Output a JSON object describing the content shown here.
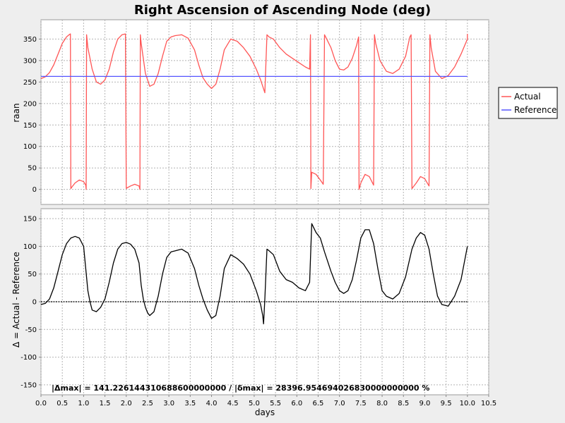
{
  "chart_data": [
    {
      "type": "line",
      "title": "Right Ascension of Ascending Node (deg)",
      "xlabel": "",
      "ylabel": "raan",
      "xlim": [
        0,
        10.5
      ],
      "ylim": [
        -35,
        395
      ],
      "yticks": [
        0,
        50,
        100,
        150,
        200,
        250,
        300,
        350
      ],
      "legend": {
        "placement": "right",
        "entries": [
          "Actual",
          "Reference"
        ]
      },
      "grid": true,
      "series": [
        {
          "name": "Actual",
          "color": "#ff5555",
          "x": [
            0,
            0.1,
            0.2,
            0.3,
            0.4,
            0.5,
            0.6,
            0.66,
            0.69,
            0.7,
            0.72,
            0.8,
            0.9,
            1.0,
            1.05,
            1.06,
            1.07,
            1.1,
            1.2,
            1.3,
            1.4,
            1.5,
            1.6,
            1.7,
            1.8,
            1.9,
            1.98,
            2.0,
            2.01,
            2.1,
            2.2,
            2.3,
            2.32,
            2.33,
            2.35,
            2.45,
            2.55,
            2.65,
            2.75,
            2.85,
            2.95,
            3.05,
            3.15,
            3.3,
            3.45,
            3.6,
            3.7,
            3.8,
            3.9,
            4.0,
            4.1,
            4.2,
            4.3,
            4.45,
            4.6,
            4.75,
            4.9,
            5.05,
            5.15,
            5.2,
            5.25,
            5.3,
            5.35,
            5.45,
            5.6,
            5.75,
            5.9,
            6.05,
            6.2,
            6.3,
            6.32,
            6.33,
            6.35,
            6.45,
            6.55,
            6.62,
            6.65,
            6.7,
            6.8,
            6.9,
            7.0,
            7.1,
            7.2,
            7.3,
            7.4,
            7.45,
            7.46,
            7.5,
            7.6,
            7.7,
            7.8,
            7.82,
            7.85,
            7.95,
            8.1,
            8.25,
            8.4,
            8.55,
            8.65,
            8.68,
            8.7,
            8.8,
            8.9,
            9.0,
            9.1,
            9.12,
            9.15,
            9.25,
            9.4,
            9.55,
            9.7,
            9.85,
            10.0,
            10.0
          ],
          "y": [
            258,
            262,
            272,
            290,
            315,
            340,
            355,
            360,
            362,
            2,
            5,
            15,
            22,
            18,
            10,
            0,
            360,
            330,
            280,
            250,
            245,
            255,
            280,
            320,
            350,
            360,
            362,
            2,
            3,
            8,
            12,
            8,
            0,
            360,
            340,
            270,
            240,
            245,
            270,
            310,
            345,
            355,
            358,
            360,
            352,
            325,
            290,
            260,
            245,
            235,
            245,
            280,
            325,
            350,
            345,
            330,
            310,
            280,
            255,
            240,
            225,
            360,
            355,
            350,
            330,
            315,
            305,
            295,
            285,
            280,
            360,
            2,
            40,
            35,
            22,
            12,
            360,
            350,
            330,
            300,
            280,
            278,
            285,
            305,
            335,
            355,
            0,
            15,
            35,
            30,
            10,
            360,
            340,
            300,
            275,
            270,
            280,
            310,
            355,
            360,
            2,
            15,
            30,
            25,
            8,
            360,
            330,
            275,
            258,
            265,
            285,
            315,
            350,
            362
          ]
        },
        {
          "name": "Reference",
          "color": "#5555ff",
          "x": [
            0,
            10
          ],
          "y": [
            263,
            263
          ]
        }
      ]
    },
    {
      "type": "line",
      "title": "",
      "xlabel": "days",
      "ylabel": "Δ = Actual - Reference",
      "xlim": [
        0,
        10.5
      ],
      "ylim": [
        -168,
        168
      ],
      "xticks": [
        0.0,
        0.5,
        1.0,
        1.5,
        2.0,
        2.5,
        3.0,
        3.5,
        4.0,
        4.5,
        5.0,
        5.5,
        6.0,
        6.5,
        7.0,
        7.5,
        8.0,
        8.5,
        9.0,
        9.5,
        10.0,
        10.5
      ],
      "yticks": [
        -150,
        -100,
        -50,
        0,
        50,
        100,
        150
      ],
      "grid": true,
      "annotation": "|Δmax| = 141.226144310688600000000       /       |δmax| = 28396.954694026830000000000 %",
      "series": [
        {
          "name": "",
          "color": "#000000",
          "x": [
            0,
            0.1,
            0.2,
            0.3,
            0.4,
            0.5,
            0.6,
            0.7,
            0.8,
            0.9,
            1.0,
            1.05,
            1.1,
            1.15,
            1.2,
            1.3,
            1.4,
            1.5,
            1.6,
            1.7,
            1.8,
            1.9,
            2.0,
            2.1,
            2.2,
            2.3,
            2.35,
            2.4,
            2.45,
            2.5,
            2.55,
            2.65,
            2.75,
            2.85,
            2.95,
            3.05,
            3.15,
            3.3,
            3.45,
            3.6,
            3.7,
            3.8,
            3.9,
            4.0,
            4.1,
            4.2,
            4.3,
            4.45,
            4.6,
            4.75,
            4.9,
            5.05,
            5.15,
            5.2,
            5.22,
            5.25,
            5.3,
            5.35,
            5.45,
            5.6,
            5.75,
            5.9,
            6.05,
            6.2,
            6.3,
            6.35,
            6.45,
            6.55,
            6.65,
            6.8,
            6.9,
            7.0,
            7.1,
            7.2,
            7.3,
            7.4,
            7.5,
            7.6,
            7.7,
            7.8,
            7.9,
            8.0,
            8.1,
            8.25,
            8.4,
            8.55,
            8.7,
            8.8,
            8.9,
            9.0,
            9.1,
            9.2,
            9.3,
            9.4,
            9.55,
            9.7,
            9.85,
            10.0
          ],
          "y": [
            -5,
            -3,
            5,
            25,
            55,
            85,
            105,
            115,
            118,
            115,
            100,
            60,
            20,
            0,
            -15,
            -18,
            -10,
            5,
            35,
            70,
            95,
            105,
            107,
            104,
            95,
            70,
            30,
            5,
            -10,
            -20,
            -25,
            -18,
            10,
            50,
            80,
            90,
            92,
            95,
            88,
            60,
            30,
            5,
            -15,
            -30,
            -25,
            10,
            60,
            85,
            78,
            68,
            50,
            20,
            -5,
            -25,
            -40,
            5,
            95,
            92,
            85,
            55,
            40,
            35,
            25,
            20,
            35,
            141,
            125,
            115,
            90,
            55,
            35,
            20,
            15,
            20,
            40,
            75,
            115,
            130,
            130,
            105,
            60,
            20,
            10,
            5,
            15,
            45,
            95,
            115,
            125,
            120,
            95,
            50,
            10,
            -5,
            -8,
            10,
            40,
            100
          ]
        }
      ]
    }
  ]
}
